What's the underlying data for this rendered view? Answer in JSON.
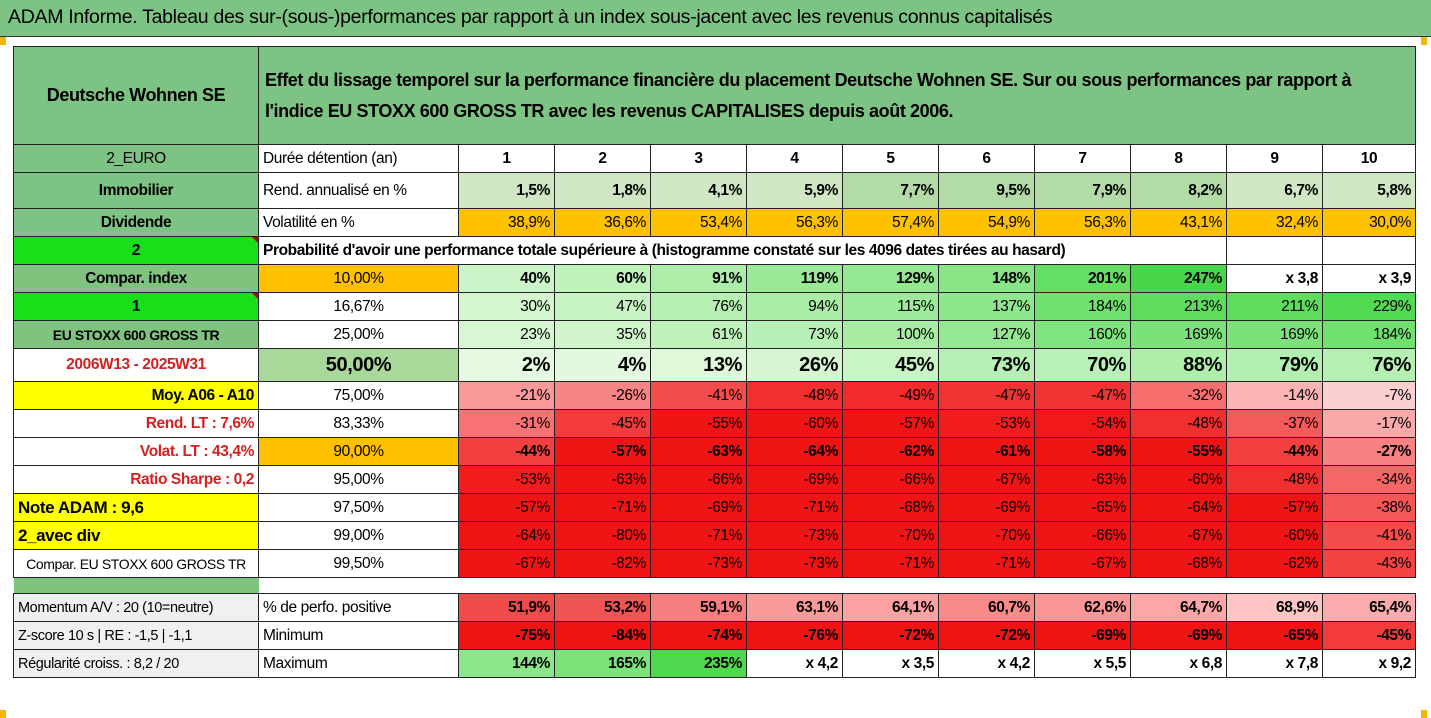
{
  "title": "ADAM Informe. Tableau des sur-(sous-)performances par rapport à un index sous-jacent avec les revenus connus capitalisés",
  "colors": {
    "header_green": "#7dc383",
    "bright_green": "#18e018",
    "yellow": "#ffff00",
    "orange": "#ffc000",
    "label_red": "#d61f1f"
  },
  "header": {
    "asset": "Deutsche Wohnen SE",
    "description": "Effet du lissage temporel sur la performance financière du placement Deutsche Wohnen SE. Sur ou sous performances par rapport à l'indice EU STOXX 600 GROSS TR avec les revenus CAPITALISES depuis août 2006."
  },
  "periods": {
    "side": "2_EURO",
    "label": "Durée détention (an)",
    "values": [
      "1",
      "2",
      "3",
      "4",
      "5",
      "6",
      "7",
      "8",
      "9",
      "10"
    ]
  },
  "returns": {
    "side": "Immobilier",
    "label": "Rend. annualisé en %",
    "values": [
      "1,5%",
      "1,8%",
      "4,1%",
      "5,9%",
      "7,7%",
      "9,5%",
      "7,9%",
      "8,2%",
      "6,7%",
      "5,8%"
    ]
  },
  "volatility": {
    "side": "Dividende",
    "label": "Volatilité en %",
    "values": [
      "38,9%",
      "36,6%",
      "53,4%",
      "56,3%",
      "57,4%",
      "54,9%",
      "56,3%",
      "43,1%",
      "32,4%",
      "30,0%"
    ]
  },
  "probability": {
    "side": "2",
    "label": "Probabilité d'avoir une performance totale supérieure à (histogramme constaté sur les 4096 dates tirées au hasard)"
  },
  "quantile_rows": [
    {
      "side": "Compar. index",
      "pct": "10,00%",
      "values": [
        "40%",
        "60%",
        "91%",
        "119%",
        "129%",
        "148%",
        "201%",
        "247%",
        "x 3,8",
        "x 3,9"
      ]
    },
    {
      "side": "1",
      "pct": "16,67%",
      "values": [
        "30%",
        "47%",
        "76%",
        "94%",
        "115%",
        "137%",
        "184%",
        "213%",
        "211%",
        "229%"
      ]
    },
    {
      "side": "EU STOXX 600 GROSS TR",
      "pct": "25,00%",
      "values": [
        "23%",
        "35%",
        "61%",
        "73%",
        "100%",
        "127%",
        "160%",
        "169%",
        "169%",
        "184%"
      ]
    },
    {
      "side": "2006W13 - 2025W31",
      "pct": "50,00%",
      "values": [
        "2%",
        "4%",
        "13%",
        "26%",
        "45%",
        "73%",
        "70%",
        "88%",
        "79%",
        "76%"
      ]
    },
    {
      "side": "Moy. A06 - A10",
      "pct": "75,00%",
      "values": [
        "-21%",
        "-26%",
        "-41%",
        "-48%",
        "-49%",
        "-47%",
        "-47%",
        "-32%",
        "-14%",
        "-7%"
      ]
    },
    {
      "side": "Rend. LT :    7,6%",
      "pct": "83,33%",
      "values": [
        "-31%",
        "-45%",
        "-55%",
        "-60%",
        "-57%",
        "-53%",
        "-54%",
        "-48%",
        "-37%",
        "-17%"
      ]
    },
    {
      "side": "Volat. LT :    43,4%",
      "pct": "90,00%",
      "values": [
        "-44%",
        "-57%",
        "-63%",
        "-64%",
        "-62%",
        "-61%",
        "-58%",
        "-55%",
        "-44%",
        "-27%"
      ]
    },
    {
      "side": "Ratio Sharpe :    0,2",
      "pct": "95,00%",
      "values": [
        "-53%",
        "-63%",
        "-66%",
        "-69%",
        "-66%",
        "-67%",
        "-63%",
        "-60%",
        "-48%",
        "-34%"
      ]
    },
    {
      "side": "Note ADAM : 9,6",
      "pct": "97,50%",
      "values": [
        "-57%",
        "-71%",
        "-69%",
        "-71%",
        "-68%",
        "-69%",
        "-65%",
        "-64%",
        "-57%",
        "-38%"
      ]
    },
    {
      "side": "2_avec div",
      "pct": "99,00%",
      "values": [
        "-64%",
        "-80%",
        "-71%",
        "-73%",
        "-70%",
        "-70%",
        "-66%",
        "-67%",
        "-60%",
        "-41%"
      ]
    },
    {
      "side": "Compar. EU STOXX 600 GROSS TR",
      "pct": "99,50%",
      "values": [
        "-67%",
        "-82%",
        "-73%",
        "-73%",
        "-71%",
        "-71%",
        "-67%",
        "-68%",
        "-62%",
        "-43%"
      ]
    }
  ],
  "bottom_rows": [
    {
      "side": "Momentum A/V : 20 (10=neutre)",
      "label": "% de perfo. positive",
      "values": [
        "51,9%",
        "53,2%",
        "59,1%",
        "63,1%",
        "64,1%",
        "60,7%",
        "62,6%",
        "64,7%",
        "68,9%",
        "65,4%"
      ]
    },
    {
      "side": "Z-score 10 s | RE : -1,5 | -1,1",
      "label": "Minimum",
      "values": [
        "-75%",
        "-84%",
        "-74%",
        "-76%",
        "-72%",
        "-72%",
        "-69%",
        "-69%",
        "-65%",
        "-45%"
      ]
    },
    {
      "side": "Régularité croiss. : 8,2 / 20",
      "label": "Maximum",
      "values": [
        "144%",
        "165%",
        "235%",
        "x 4,2",
        "x 3,5",
        "x 4,2",
        "x 5,5",
        "x 6,8",
        "x 7,8",
        "x 9,2"
      ]
    }
  ]
}
